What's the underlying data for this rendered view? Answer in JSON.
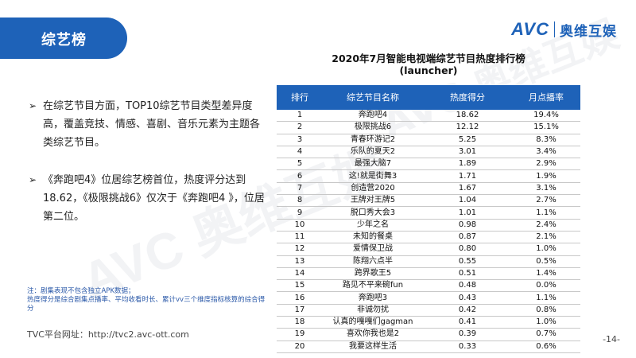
{
  "header": {
    "title": "综艺榜"
  },
  "logo": {
    "brand": "AVC",
    "cn": "奥维互娱"
  },
  "watermark": "AVC 奥维互娱",
  "bullets": [
    "在综艺节目方面，TOP10综艺节目类型差异度高，覆盖竞技、情感、喜剧、音乐元素为主题各类综艺节目。",
    "《奔跑吧4》位居综艺榜首位，热度评分达到18.62，《极限挑战6》仅次于《奔跑吧4 》，位居第二位。"
  ],
  "note": "注：剧集表现不包含独立APK数据；\n热度得分是综合剧集点播率、平均收看时长、累计vv三个维度指标核算的综合得分",
  "footer": {
    "link": "TVC平台网址：http://tvc2.avc-ott.com",
    "page": "-14-"
  },
  "table": {
    "title": "2020年7月智能电视端综艺节目热度排行榜\n(launcher)",
    "headers": [
      "排行",
      "综艺节目名称",
      "热度得分",
      "月点播率"
    ],
    "rows": [
      [
        "1",
        "奔跑吧4",
        "18.62",
        "19.4%"
      ],
      [
        "2",
        "极限挑战6",
        "12.12",
        "15.1%"
      ],
      [
        "3",
        "青春环游记2",
        "5.25",
        "8.3%"
      ],
      [
        "4",
        "乐队的夏天2",
        "3.01",
        "3.4%"
      ],
      [
        "5",
        "最强大脑7",
        "1.89",
        "2.9%"
      ],
      [
        "6",
        "这!就是街舞3",
        "1.71",
        "1.9%"
      ],
      [
        "7",
        "创造营2020",
        "1.67",
        "3.1%"
      ],
      [
        "8",
        "王牌对王牌5",
        "1.04",
        "2.7%"
      ],
      [
        "9",
        "脱口秀大会3",
        "1.01",
        "1.1%"
      ],
      [
        "10",
        "少年之名",
        "0.98",
        "2.4%"
      ],
      [
        "11",
        "未知的餐桌",
        "0.87",
        "2.1%"
      ],
      [
        "12",
        "爱情保卫战",
        "0.80",
        "1.0%"
      ],
      [
        "13",
        "陈翔六点半",
        "0.55",
        "0.5%"
      ],
      [
        "14",
        "跨界歌王5",
        "0.51",
        "1.4%"
      ],
      [
        "15",
        "路见不平来碗fun",
        "0.48",
        "0.0%"
      ],
      [
        "16",
        "奔跑吧3",
        "0.43",
        "1.1%"
      ],
      [
        "17",
        "非诚勿扰",
        "0.42",
        "0.8%"
      ],
      [
        "18",
        "认真的嘎嘎们gagman",
        "0.41",
        "1.0%"
      ],
      [
        "19",
        "喜欢你我也是2",
        "0.39",
        "0.7%"
      ],
      [
        "20",
        "我要这样生活",
        "0.33",
        "0.6%"
      ]
    ]
  }
}
